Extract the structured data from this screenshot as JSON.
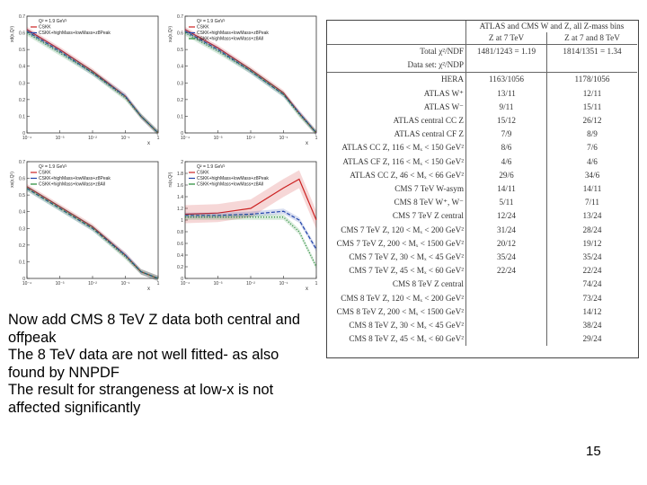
{
  "plots": [
    {
      "legend": [
        "Q² = 1.9 GeV²",
        "CSKK",
        "CSKK+highMass+lowMass+z8Peak"
      ],
      "ylabel": "xd(x,Q²)",
      "xlabel": "x",
      "yticks": [
        "0.7",
        "0.6",
        "0.5",
        "0.4",
        "0.3",
        "0.2",
        "0.1",
        "0"
      ],
      "xticks": [
        "10⁻⁴",
        "10⁻³",
        "10⁻²",
        "10⁻¹",
        "1"
      ]
    },
    {
      "legend": [
        "Q² = 1.9 GeV²",
        "CSKK",
        "CSKK+highMass+lowMass+z8Peak",
        "CSKK+highMass+lowMass+z8All"
      ],
      "ylabel": "xu(x,Q²)",
      "xlabel": "x",
      "yticks": [
        "0.7",
        "0.6",
        "0.5",
        "0.4",
        "0.3",
        "0.2",
        "0.1",
        "0"
      ],
      "xticks": [
        "10⁻⁴",
        "10⁻³",
        "10⁻²",
        "10⁻¹",
        "1"
      ]
    },
    {
      "legend": [
        "Q² = 1.9 GeV²",
        "CSKK",
        "CSKK+highMass+lowMass+z8Peak",
        "CSKK+highMass+lowMass+z8All"
      ],
      "ylabel": "xs(x,Q²)",
      "xlabel": "x",
      "yticks": [
        "0.7",
        "0.6",
        "0.5",
        "0.4",
        "0.3",
        "0.2",
        "0.1",
        "0"
      ],
      "xticks": [
        "10⁻⁴",
        "10⁻³",
        "10⁻²",
        "10⁻¹",
        "1"
      ]
    },
    {
      "legend": [
        "Q² = 1.9 GeV²",
        "CSKK",
        "CSKK+highMass+lowMass+z8Peak",
        "CSKK+highMass+lowMass+z8All"
      ],
      "ylabel": "rs(x,Q²)",
      "xlabel": "x",
      "yticks": [
        "2",
        "1.8",
        "1.6",
        "1.4",
        "1.2",
        "1",
        "0.8",
        "0.6",
        "0.4",
        "0.2",
        "0"
      ],
      "xticks": [
        "10⁻⁴",
        "10⁻³",
        "10⁻²",
        "10⁻¹",
        "1"
      ]
    }
  ],
  "chart_data": [
    {
      "type": "line",
      "title": "",
      "xlabel": "x",
      "ylabel": "xd(x,Q²)",
      "xscale": "log",
      "xlim": [
        0.0001,
        1
      ],
      "ylim": [
        0,
        0.7
      ],
      "x": [
        0.0001,
        0.001,
        0.01,
        0.1,
        0.3,
        1
      ],
      "series": [
        {
          "name": "CSKK",
          "values": [
            0.62,
            0.5,
            0.37,
            0.22,
            0.1,
            0
          ]
        },
        {
          "name": "CSKK+highMass+lowMass+z8Peak",
          "values": [
            0.61,
            0.49,
            0.36,
            0.22,
            0.1,
            0
          ]
        },
        {
          "name": "CSKK+highMass+lowMass+z8All",
          "values": [
            0.6,
            0.48,
            0.36,
            0.21,
            0.1,
            0
          ]
        }
      ]
    },
    {
      "type": "line",
      "title": "",
      "xlabel": "x",
      "ylabel": "xu(x,Q²)",
      "xscale": "log",
      "xlim": [
        0.0001,
        1
      ],
      "ylim": [
        0,
        0.7
      ],
      "x": [
        0.0001,
        0.001,
        0.01,
        0.1,
        0.3,
        1
      ],
      "series": [
        {
          "name": "CSKK",
          "values": [
            0.62,
            0.51,
            0.38,
            0.24,
            0.12,
            0
          ]
        },
        {
          "name": "CSKK+highMass+lowMass+z8Peak",
          "values": [
            0.61,
            0.5,
            0.37,
            0.23,
            0.12,
            0
          ]
        },
        {
          "name": "CSKK+highMass+lowMass+z8All",
          "values": [
            0.6,
            0.49,
            0.37,
            0.23,
            0.11,
            0
          ]
        }
      ]
    },
    {
      "type": "line",
      "title": "",
      "xlabel": "x",
      "ylabel": "xs(x,Q²)",
      "xscale": "log",
      "xlim": [
        0.0001,
        1
      ],
      "ylim": [
        0,
        0.7
      ],
      "x": [
        0.0001,
        0.001,
        0.01,
        0.1,
        0.3,
        1
      ],
      "series": [
        {
          "name": "CSKK",
          "values": [
            0.55,
            0.43,
            0.31,
            0.14,
            0.04,
            0
          ]
        },
        {
          "name": "CSKK+highMass+lowMass+z8Peak",
          "values": [
            0.54,
            0.42,
            0.3,
            0.14,
            0.04,
            0
          ]
        },
        {
          "name": "CSKK+highMass+lowMass+z8All",
          "values": [
            0.54,
            0.42,
            0.3,
            0.13,
            0.04,
            0
          ]
        }
      ]
    },
    {
      "type": "line",
      "title": "",
      "xlabel": "x",
      "ylabel": "rs(x,Q²)",
      "xscale": "log",
      "xlim": [
        0.0001,
        1
      ],
      "ylim": [
        0,
        2
      ],
      "x": [
        0.0001,
        0.001,
        0.01,
        0.1,
        0.3,
        1
      ],
      "series": [
        {
          "name": "CSKK",
          "values": [
            1.1,
            1.12,
            1.2,
            1.55,
            1.7,
            1.0
          ]
        },
        {
          "name": "CSKK+highMass+lowMass+z8Peak",
          "values": [
            1.08,
            1.08,
            1.1,
            1.15,
            1.0,
            0.5
          ]
        },
        {
          "name": "CSKK+highMass+lowMass+z8All",
          "values": [
            1.05,
            1.05,
            1.05,
            1.05,
            0.8,
            0.2
          ]
        }
      ]
    }
  ],
  "table": {
    "header": {
      "col1": "ATLAS and CMS W and Z, all Z-mass bins",
      "col2a": "Z at 7 TeV",
      "col3a": "Z at 7 and 8 TeV"
    },
    "summary": [
      {
        "label": "Total χ²/NDF",
        "v1": "1481/1243 = 1.19",
        "v2": "1814/1351 = 1.34"
      },
      {
        "label": "Data set: χ²/NDP",
        "v1": "",
        "v2": ""
      }
    ],
    "rows": [
      {
        "label": "HERA",
        "v1": "1163/1056",
        "v2": "1178/1056"
      },
      {
        "label": "ATLAS W⁺",
        "v1": "13/11",
        "v2": "12/11"
      },
      {
        "label": "ATLAS W⁻",
        "v1": "9/11",
        "v2": "15/11"
      },
      {
        "label": "ATLAS central CC Z",
        "v1": "15/12",
        "v2": "26/12"
      },
      {
        "label": "ATLAS central CF Z",
        "v1": "7/9",
        "v2": "8/9"
      },
      {
        "label": "ATLAS CC Z, 116 < Mₓ < 150 GeV²",
        "v1": "8/6",
        "v2": "7/6"
      },
      {
        "label": "ATLAS CF Z, 116 < Mₓ < 150 GeV²",
        "v1": "4/6",
        "v2": "4/6"
      },
      {
        "label": "ATLAS CC Z, 46 < Mₓ < 66 GeV²",
        "v1": "29/6",
        "v2": "34/6"
      },
      {
        "label": "CMS 7 TeV W-asym",
        "v1": "14/11",
        "v2": "14/11"
      },
      {
        "label": "CMS 8 TeV W⁺, W⁻",
        "v1": "5/11",
        "v2": "7/11"
      },
      {
        "label": "CMS 7 TeV Z central",
        "v1": "12/24",
        "v2": "13/24"
      },
      {
        "label": "CMS 7 TeV Z, 120 < Mₓ < 200 GeV²",
        "v1": "31/24",
        "v2": "28/24"
      },
      {
        "label": "CMS 7 TeV Z, 200 < Mₓ < 1500 GeV²",
        "v1": "20/12",
        "v2": "19/12"
      },
      {
        "label": "CMS 7 TeV Z, 30 < Mₓ < 45 GeV²",
        "v1": "35/24",
        "v2": "35/24"
      },
      {
        "label": "CMS 7 TeV Z, 45 < Mₓ < 60 GeV²",
        "v1": "22/24",
        "v2": "22/24"
      },
      {
        "label": "CMS 8 TeV Z central",
        "v1": "",
        "v2": "74/24"
      },
      {
        "label": "CMS 8 TeV Z, 120 < Mₓ < 200 GeV²",
        "v1": "",
        "v2": "73/24"
      },
      {
        "label": "CMS 8 TeV Z, 200 < Mₓ < 1500 GeV²",
        "v1": "",
        "v2": "14/12"
      },
      {
        "label": "CMS 8 TeV Z, 30 < Mₓ < 45 GeV²",
        "v1": "",
        "v2": "38/24"
      },
      {
        "label": "CMS 8 TeV Z, 45 < Mₓ < 60 GeV²",
        "v1": "",
        "v2": "29/24"
      }
    ]
  },
  "bodytext": {
    "line1": "Now add CMS 8 TeV Z data both central and offpeak",
    "line2": "The 8 TeV data are not well fitted- as also found by NNPDF",
    "line3": "The result for strangeness at low-x is not affected significantly"
  },
  "page_number": "15",
  "colors": {
    "series1": "#cc2222",
    "series2": "#2244aa",
    "series3": "#228833"
  }
}
